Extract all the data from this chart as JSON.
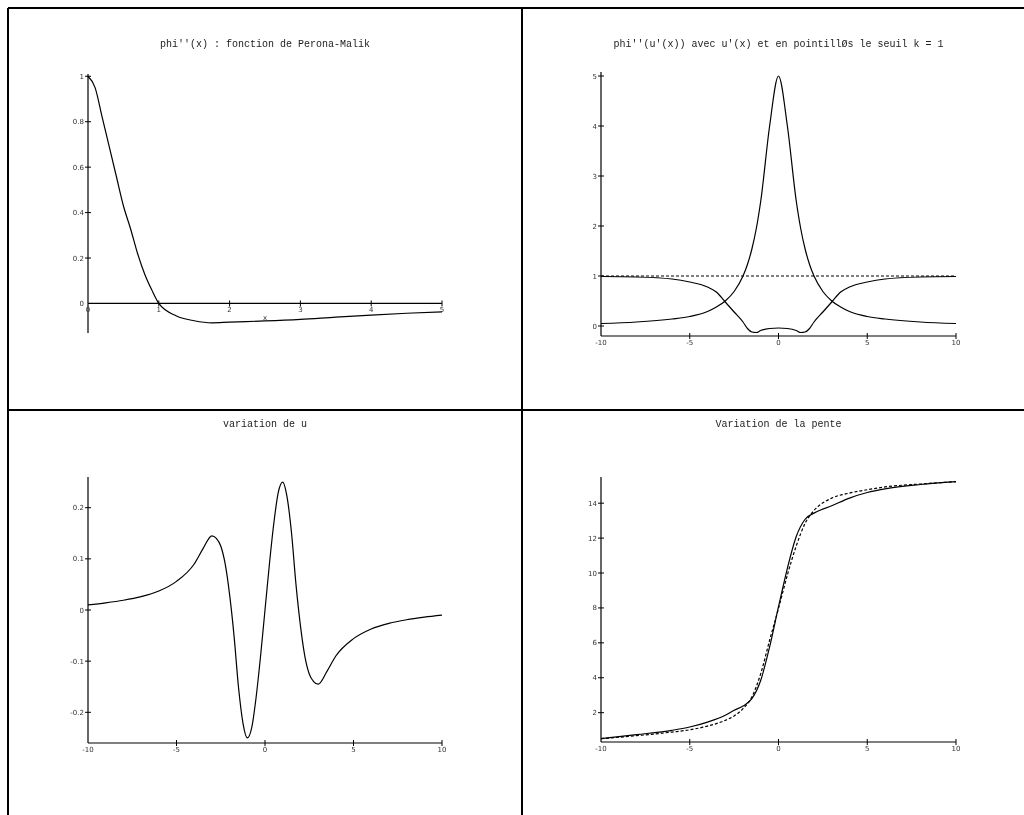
{
  "chart_data": [
    {
      "type": "line",
      "title": "phi''(x) : fonction de Perona-Malik",
      "xlabel": "x",
      "xlim": [
        0,
        5
      ],
      "xticks": [
        0,
        1,
        2,
        3,
        4,
        5
      ],
      "ylim": [
        -0.13,
        1.01
      ],
      "yticks": [
        0,
        0.2,
        0.4,
        0.6,
        0.8,
        1
      ],
      "series": [
        {
          "color": "#000000",
          "x": [
            0,
            0.1,
            0.2,
            0.3,
            0.4,
            0.5,
            0.6,
            0.7,
            0.8,
            0.9,
            1,
            1.25,
            1.5,
            1.75,
            2,
            2.5,
            3,
            3.5,
            4,
            4.5,
            5
          ],
          "values": [
            1,
            0.95,
            0.82,
            0.69,
            0.56,
            0.43,
            0.33,
            0.22,
            0.13,
            0.06,
            0,
            -0.055,
            -0.076,
            -0.085,
            -0.082,
            -0.077,
            -0.07,
            -0.06,
            -0.051,
            -0.043,
            -0.037
          ]
        }
      ]
    },
    {
      "type": "line",
      "title": "phi''(u'(x)) avec u'(x) et en pointillØs le seuil k = 1",
      "xlim": [
        -10,
        10
      ],
      "xticks": [
        -10,
        -5,
        0,
        5,
        10
      ],
      "ylim": [
        -0.2,
        5.08
      ],
      "yticks": [
        0,
        1,
        2,
        3,
        4,
        5
      ],
      "ref_lines": [
        {
          "axis": "y",
          "value": 1,
          "line_style": "dashed",
          "color": "#000000"
        }
      ],
      "series": [
        {
          "color": "#000000",
          "x": [
            -10,
            -8,
            -6,
            -5,
            -4,
            -3.5,
            -3,
            -2.5,
            -2,
            -1.75,
            -1.5,
            -1.25,
            -1,
            -0.5,
            0,
            0.5,
            1,
            1.25,
            1.5,
            1.75,
            2,
            2.5,
            3,
            3.5,
            4,
            5,
            6,
            8,
            10
          ],
          "values": [
            0.05,
            0.08,
            0.14,
            0.19,
            0.29,
            0.38,
            0.5,
            0.69,
            1,
            1.23,
            1.54,
            1.95,
            2.5,
            4,
            5,
            4,
            2.5,
            1.95,
            1.54,
            1.23,
            1,
            0.69,
            0.5,
            0.38,
            0.29,
            0.19,
            0.14,
            0.08,
            0.05
          ]
        },
        {
          "color": "#000000",
          "x": [
            -10,
            -8,
            -6,
            -5,
            -4,
            -3.5,
            -3,
            -2.5,
            -2,
            -1.75,
            -1.5,
            -1.25,
            -1,
            -0.5,
            0,
            0.5,
            1,
            1.25,
            1.5,
            1.75,
            2,
            2.5,
            3,
            3.5,
            4,
            5,
            6,
            8,
            10
          ],
          "values": [
            0.99,
            0.98,
            0.94,
            0.88,
            0.78,
            0.68,
            0.48,
            0.28,
            0.08,
            -0.05,
            -0.12,
            -0.13,
            -0.09,
            -0.05,
            -0.04,
            -0.05,
            -0.09,
            -0.13,
            -0.12,
            -0.05,
            0.08,
            0.28,
            0.48,
            0.68,
            0.78,
            0.88,
            0.94,
            0.98,
            0.99
          ]
        }
      ]
    },
    {
      "type": "line",
      "title": "variation de u",
      "xlim": [
        -10,
        10
      ],
      "xticks": [
        -10,
        -5,
        0,
        5,
        10
      ],
      "ylim": [
        -0.26,
        0.26
      ],
      "yticks": [
        -0.2,
        -0.1,
        0,
        0.1,
        0.2
      ],
      "series": [
        {
          "color": "#000000",
          "x": [
            -10,
            -9,
            -8,
            -7,
            -6,
            -5,
            -4,
            -3.5,
            -3,
            -2.75,
            -2.5,
            -2.25,
            -2,
            -1.75,
            -1.5,
            -1.25,
            -1,
            -0.75,
            -0.5,
            -0.25,
            0,
            0.25,
            0.5,
            0.75,
            1,
            1.25,
            1.5,
            1.75,
            2,
            2.25,
            2.5,
            2.75,
            3,
            3.5,
            4,
            5,
            6,
            7,
            8,
            9,
            10
          ],
          "values": [
            0.01,
            0.014,
            0.019,
            0.026,
            0.037,
            0.056,
            0.09,
            0.12,
            0.145,
            0.14,
            0.125,
            0.09,
            0.03,
            -0.05,
            -0.15,
            -0.22,
            -0.25,
            -0.23,
            -0.17,
            -0.09,
            0,
            0.09,
            0.17,
            0.23,
            0.25,
            0.22,
            0.15,
            0.05,
            -0.03,
            -0.09,
            -0.125,
            -0.14,
            -0.145,
            -0.12,
            -0.09,
            -0.056,
            -0.037,
            -0.026,
            -0.019,
            -0.014,
            -0.01
          ]
        }
      ]
    },
    {
      "type": "line",
      "title": "Variation de la pente",
      "xlim": [
        -10,
        10
      ],
      "xticks": [
        -10,
        -5,
        0,
        5,
        10
      ],
      "ylim": [
        0.32,
        15.5
      ],
      "yticks": [
        2,
        4,
        6,
        8,
        10,
        12,
        14
      ],
      "series": [
        {
          "color": "#000000",
          "line_style": "solid",
          "x": [
            -10,
            -8,
            -6,
            -5,
            -4,
            -3,
            -2.5,
            -2,
            -1.5,
            -1,
            -0.5,
            0,
            0.5,
            1,
            1.5,
            2,
            3,
            4,
            5,
            6,
            8,
            10
          ],
          "values": [
            0.51,
            0.74,
            0.99,
            1.18,
            1.46,
            1.85,
            2.14,
            2.38,
            2.8,
            3.86,
            5.77,
            8.07,
            10.27,
            12.09,
            13.08,
            13.43,
            13.85,
            14.29,
            14.61,
            14.82,
            15.07,
            15.23
          ]
        },
        {
          "color": "#000000",
          "line_style": "dashed",
          "x": [
            -10,
            -8,
            -6,
            -5,
            -4,
            -3,
            -2.5,
            -2,
            -1.5,
            -1,
            -0.5,
            0,
            0.5,
            1,
            1.5,
            2,
            3,
            4,
            5,
            6,
            8,
            10
          ],
          "values": [
            0.51,
            0.68,
            0.89,
            1.02,
            1.23,
            1.56,
            1.81,
            2.23,
            2.9,
            4.24,
            6.15,
            7.97,
            9.89,
            11.55,
            12.85,
            13.58,
            14.29,
            14.58,
            14.77,
            14.93,
            15.1,
            15.23
          ]
        }
      ]
    }
  ]
}
